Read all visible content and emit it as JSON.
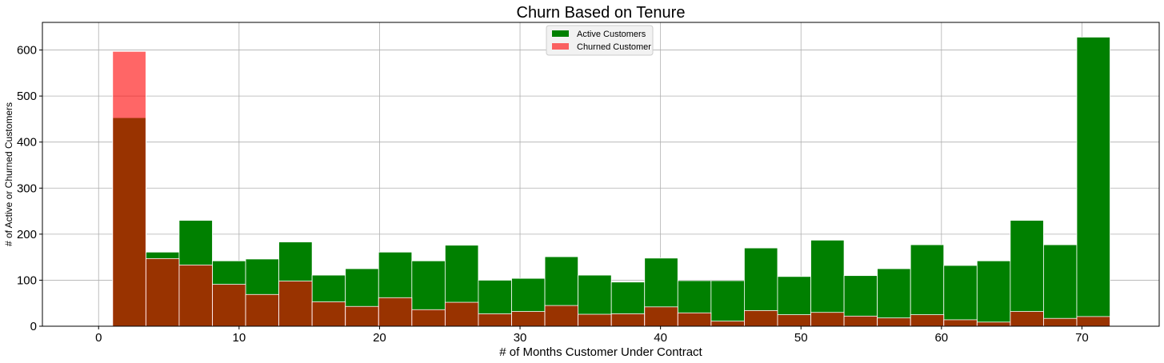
{
  "chart_data": {
    "type": "bar",
    "title": "Churn Based on Tenure",
    "xlabel": "# of Months Customer Under Contract",
    "ylabel": "# of Active or Churned Customers",
    "xlim": [
      -4,
      75.5
    ],
    "ylim": [
      0,
      660
    ],
    "xticks": [
      0,
      10,
      20,
      30,
      40,
      50,
      60,
      70
    ],
    "yticks": [
      0,
      100,
      200,
      300,
      400,
      500,
      600
    ],
    "grid": true,
    "legend_position": "top-center",
    "bin_edges": [
      1.0,
      3.366667,
      5.733333,
      8.1,
      10.466667,
      12.833333,
      15.2,
      17.566667,
      19.933333,
      22.3,
      24.666667,
      27.033333,
      29.4,
      31.766667,
      34.133333,
      36.5,
      38.866667,
      41.233333,
      43.6,
      45.966667,
      48.333333,
      50.7,
      53.066667,
      55.433333,
      57.8,
      60.166667,
      62.533333,
      64.9,
      67.266667,
      69.633333,
      72.0
    ],
    "series": [
      {
        "name": "Active Customers",
        "color": "#008000",
        "opacity": 1.0,
        "values": [
          453,
          161,
          230,
          142,
          146,
          183,
          111,
          125,
          161,
          142,
          176,
          100,
          104,
          151,
          111,
          96,
          148,
          99,
          99,
          170,
          108,
          187,
          110,
          125,
          177,
          132,
          142,
          230,
          177,
          628
        ]
      },
      {
        "name": "Churned Customer",
        "color": "#ff0000",
        "opacity": 0.6,
        "values": [
          597,
          147,
          133,
          91,
          69,
          98,
          53,
          43,
          62,
          36,
          52,
          27,
          32,
          45,
          26,
          27,
          42,
          29,
          11,
          34,
          25,
          30,
          22,
          18,
          25,
          14,
          9,
          32,
          17,
          21
        ]
      }
    ]
  }
}
